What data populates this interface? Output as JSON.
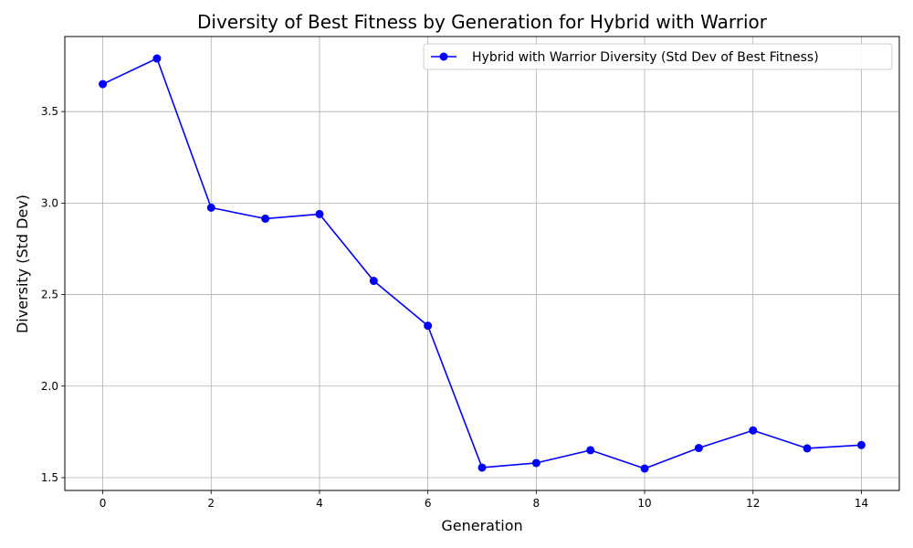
{
  "chart_data": {
    "type": "line",
    "title": "Diversity of Best Fitness by Generation for Hybrid with Warrior",
    "xlabel": "Generation",
    "ylabel": "Diversity (Std Dev)",
    "xlim": [
      -0.7,
      14.7
    ],
    "ylim": [
      1.43,
      3.91
    ],
    "xticks": [
      0,
      2,
      4,
      6,
      8,
      10,
      12,
      14
    ],
    "xtick_labels": [
      "0",
      "2",
      "4",
      "6",
      "8",
      "10",
      "12",
      "14"
    ],
    "yticks": [
      1.5,
      2.0,
      2.5,
      3.0,
      3.5
    ],
    "ytick_labels": [
      "1.5",
      "2.0",
      "2.5",
      "3.0",
      "3.5"
    ],
    "grid": true,
    "legend_position": "top-right",
    "series": [
      {
        "name": "Hybrid with Warrior Diversity (Std Dev of Best Fitness)",
        "color": "#0000ff",
        "marker": "circle",
        "x": [
          0,
          1,
          2,
          3,
          4,
          5,
          6,
          7,
          8,
          9,
          10,
          11,
          12,
          13,
          14
        ],
        "y": [
          3.65,
          3.79,
          2.975,
          2.915,
          2.94,
          2.575,
          2.33,
          1.555,
          1.58,
          1.65,
          1.55,
          1.662,
          1.758,
          1.66,
          1.678
        ]
      }
    ]
  }
}
